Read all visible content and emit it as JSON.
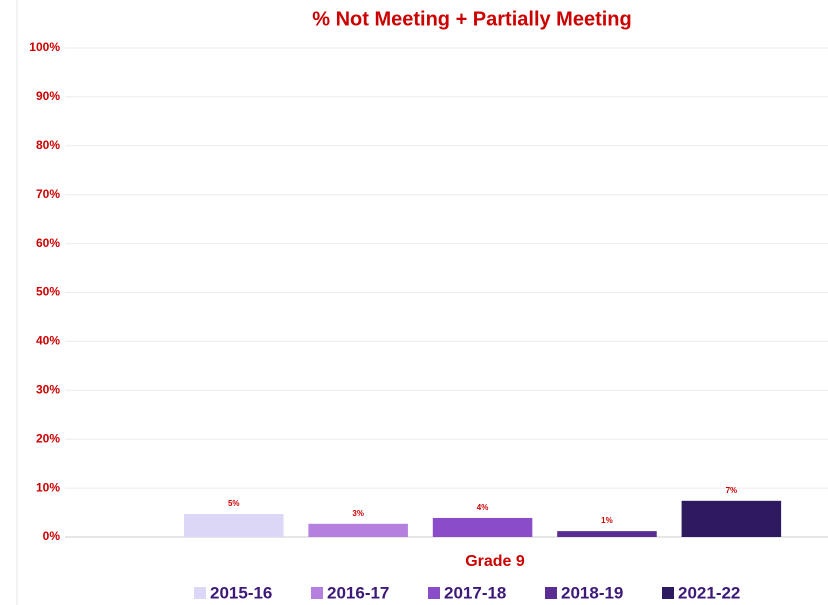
{
  "chart_data": {
    "type": "bar",
    "title": "% Not Meeting + Partially Meeting",
    "x_label": "Grade 9",
    "categories": [
      "Grade 9"
    ],
    "series": [
      {
        "name": "2015-16",
        "color": "#dcd6f7",
        "values": [
          4.7
        ],
        "value_labels": [
          "5%"
        ]
      },
      {
        "name": "2016-17",
        "color": "#b57fe0",
        "values": [
          2.7
        ],
        "value_labels": [
          "3%"
        ]
      },
      {
        "name": "2017-18",
        "color": "#8a4cc8",
        "values": [
          3.9
        ],
        "value_labels": [
          "4%"
        ]
      },
      {
        "name": "2018-19",
        "color": "#5c2d91",
        "values": [
          1.2
        ],
        "value_labels": [
          "1%"
        ]
      },
      {
        "name": "2021-22",
        "color": "#2e1a5e",
        "values": [
          7.4
        ],
        "value_labels": [
          "7%"
        ]
      }
    ],
    "ylim": [
      0,
      100
    ],
    "yticks": [
      {
        "value": 0,
        "label": "0%"
      },
      {
        "value": 10,
        "label": "10%"
      },
      {
        "value": 20,
        "label": "20%"
      },
      {
        "value": 30,
        "label": "30%"
      },
      {
        "value": 40,
        "label": "40%"
      },
      {
        "value": 50,
        "label": "50%"
      },
      {
        "value": 60,
        "label": "60%"
      },
      {
        "value": 70,
        "label": "70%"
      },
      {
        "value": 80,
        "label": "80%"
      },
      {
        "value": 90,
        "label": "90%"
      },
      {
        "value": 100,
        "label": "100%"
      }
    ],
    "grid": true,
    "legend": "bottom"
  }
}
